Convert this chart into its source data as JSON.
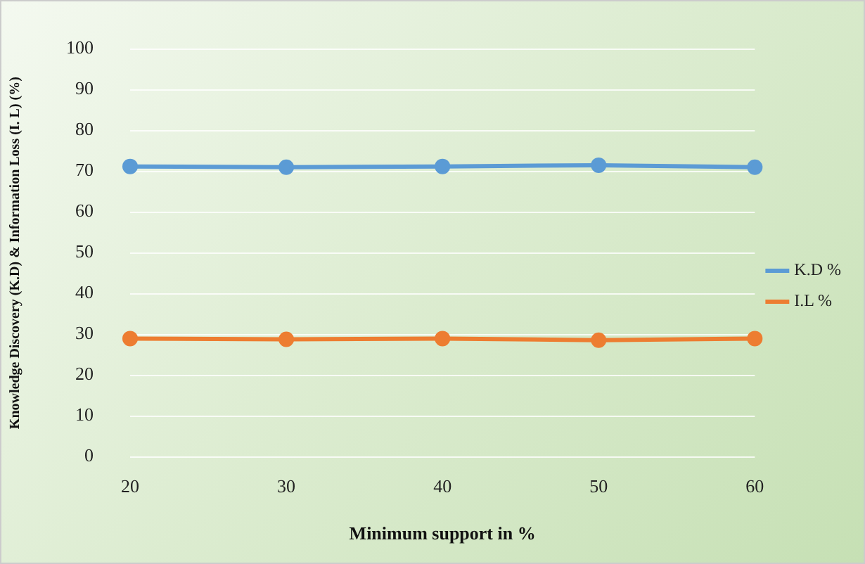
{
  "chart_data": {
    "type": "line",
    "xlabel": "Minimum support in %",
    "ylabel": "Knowledge Discovery (K.D) & Information Loss (I. L) (%)",
    "categories": [
      "20",
      "30",
      "40",
      "50",
      "60"
    ],
    "series": [
      {
        "name": "K.D %",
        "color": "#5b9bd5",
        "values": [
          71.2,
          71,
          71.2,
          71.5,
          71
        ]
      },
      {
        "name": "I.L %",
        "color": "#ed7d31",
        "values": [
          29,
          28.8,
          29,
          28.6,
          29
        ]
      }
    ],
    "ylim": [
      0,
      100
    ],
    "yticks": [
      0,
      10,
      20,
      30,
      40,
      50,
      60,
      70,
      80,
      90,
      100
    ],
    "grid": "y",
    "legend": "right",
    "marker": "circle",
    "line_style": "solid"
  }
}
